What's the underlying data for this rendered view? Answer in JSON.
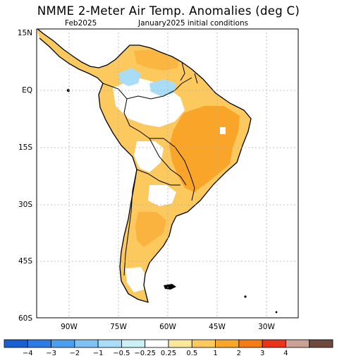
{
  "title": "NMME 2-Meter Air Temp. Anomalies (deg C)",
  "valid_month": "Feb2025",
  "initial_conditions": "January2025 initial conditions",
  "lat_ticks": [
    "15N",
    "EQ",
    "15S",
    "30S",
    "45S",
    "60S"
  ],
  "lon_ticks": [
    "90W",
    "75W",
    "60W",
    "45W",
    "30W"
  ],
  "legend": {
    "colors": [
      "#1a5fd1",
      "#2a7be3",
      "#4aa0ec",
      "#7fc1f2",
      "#a9dcf6",
      "#c9f1f5",
      "#ffffff",
      "#fde79a",
      "#fbc95e",
      "#f9a52a",
      "#f57b14",
      "#e8341c",
      "#c9a195",
      "#6e4a3c"
    ],
    "labels": [
      "−4",
      "−3",
      "−2",
      "−1",
      "−0.5",
      "−0.25",
      "0.25",
      "0.5",
      "1",
      "2",
      "3",
      "4"
    ]
  },
  "colors": {
    "land_warm": "#fbc95e",
    "land_hot": "#f9a52a",
    "land_cool": "#a9dcf6",
    "coast": "#000000",
    "grid": "#b0b0b0"
  }
}
